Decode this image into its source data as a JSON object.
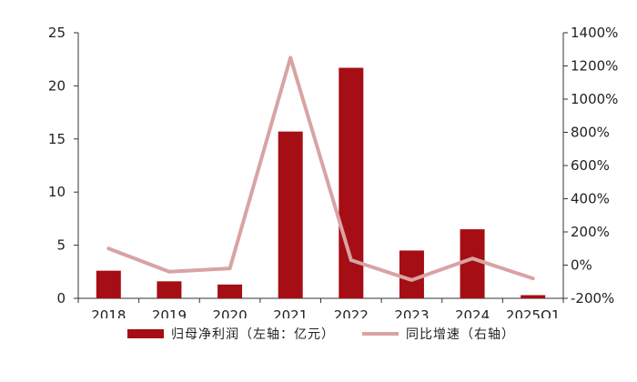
{
  "chart_data": {
    "type": "bar",
    "categories": [
      "2018",
      "2019",
      "2020",
      "2021",
      "2022",
      "2023",
      "2024",
      "2025Q1"
    ],
    "series": [
      {
        "name": "归母净利润（左轴：亿元）",
        "type": "bar",
        "axis": "left",
        "values": [
          2.6,
          1.6,
          1.3,
          15.7,
          21.7,
          4.5,
          6.5,
          0.3
        ]
      },
      {
        "name": "同比增速（右轴）",
        "type": "line",
        "axis": "right",
        "values": [
          100,
          -40,
          -20,
          1250,
          30,
          -90,
          40,
          -80
        ]
      }
    ],
    "left_axis": {
      "ylim": [
        0,
        25
      ],
      "ticks": [
        0,
        5,
        10,
        15,
        20,
        25
      ]
    },
    "right_axis": {
      "ylim": [
        -200,
        1400
      ],
      "ticks": [
        "-200%",
        "0%",
        "200%",
        "400%",
        "600%",
        "800%",
        "1000%",
        "1200%",
        "1400%"
      ]
    },
    "grid": false,
    "legend_position": "bottom",
    "colors": {
      "bar": "#A50E14",
      "line": "#D9A3A3",
      "axis": "#333333"
    }
  }
}
